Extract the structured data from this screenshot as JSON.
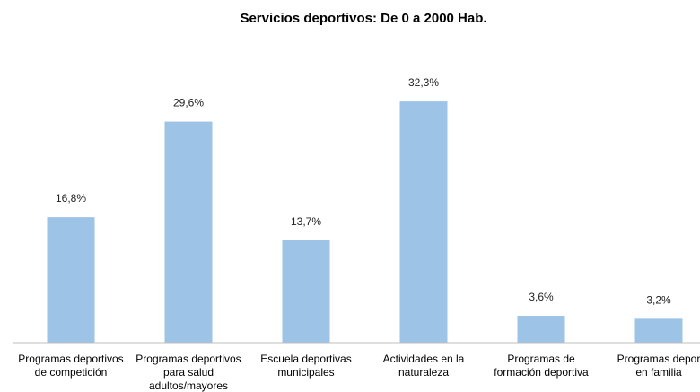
{
  "chart_data": {
    "type": "bar",
    "title": "Servicios deportivos: De 0 a 2000 Hab.",
    "categories": [
      [
        "Programas deportivos",
        "de competición"
      ],
      [
        "Programas deportivos",
        "para salud",
        "adultos/mayores"
      ],
      [
        "Escuela deportivas",
        "municipales"
      ],
      [
        "Actividades en la",
        "naturaleza"
      ],
      [
        "Programas de",
        "formación deportiva"
      ],
      [
        "Programas depor",
        "en familia"
      ]
    ],
    "values": [
      16.8,
      29.6,
      13.7,
      32.3,
      3.6,
      3.2
    ],
    "value_labels": [
      "16,8%",
      "29,6%",
      "13,7%",
      "32,3%",
      "3,6%",
      "3,2%"
    ],
    "ylim": [
      0,
      40
    ],
    "grid": false,
    "legend": "none",
    "colors": {
      "bar": "#9dc3e6",
      "axis": "#bfbfbf"
    }
  }
}
